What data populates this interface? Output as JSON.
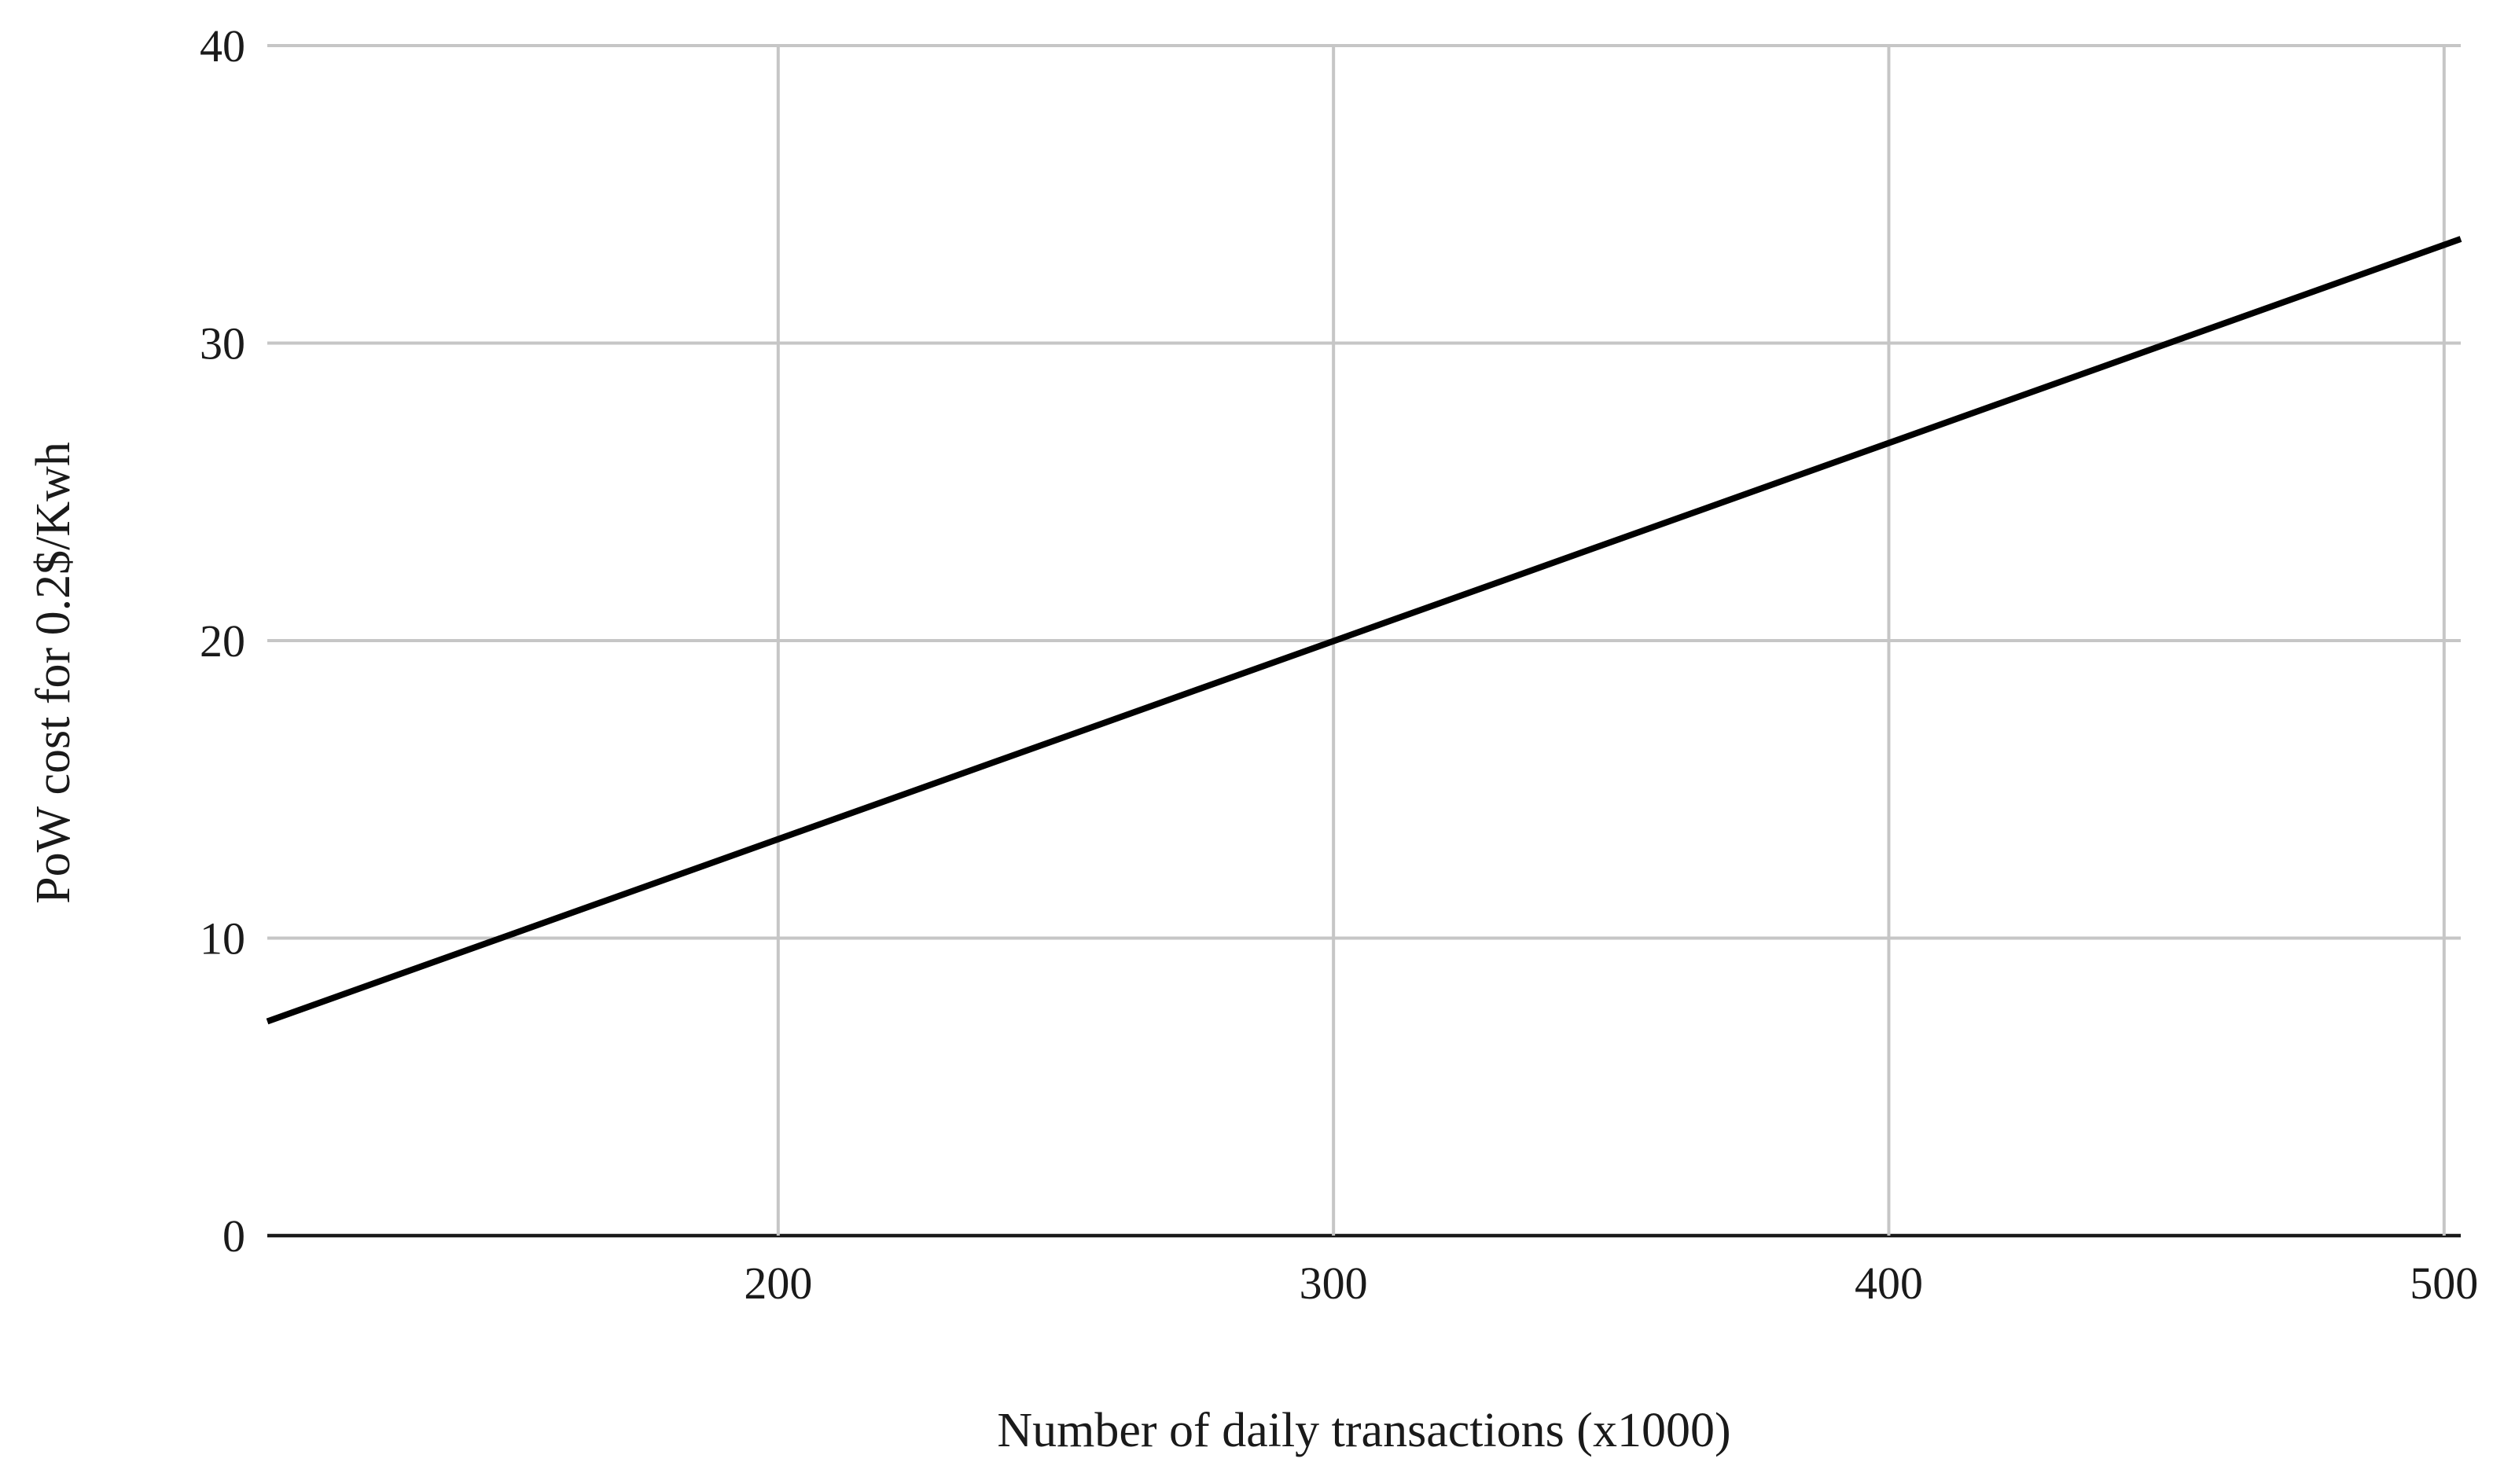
{
  "chart_data": {
    "type": "line",
    "title": "",
    "xlabel": "Number of daily transactions (x1000)",
    "ylabel": "PoW cost for 0.2$/Kwh",
    "x_ticks": [
      "200",
      "300",
      "400",
      "500"
    ],
    "y_ticks": [
      "0",
      "10",
      "20",
      "30",
      "40"
    ],
    "xlim": [
      108,
      503
    ],
    "ylim": [
      0,
      40
    ],
    "grid": true,
    "legend": "none",
    "series": [
      {
        "x": [
          108,
          503
        ],
        "y": [
          7.2,
          33.5
        ],
        "color": "#000000"
      }
    ]
  }
}
